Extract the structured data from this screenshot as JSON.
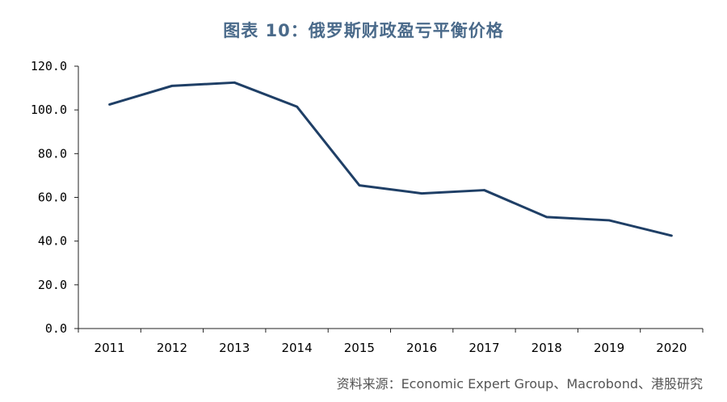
{
  "chart_data": {
    "type": "line",
    "title": "图表 10：俄罗斯财政盈亏平衡价格",
    "xlabel": "",
    "ylabel": "",
    "categories": [
      "2011",
      "2012",
      "2013",
      "2014",
      "2015",
      "2016",
      "2017",
      "2018",
      "2019",
      "2020"
    ],
    "series": [
      {
        "values": [
          102.5,
          111.0,
          112.5,
          101.5,
          65.5,
          61.8,
          63.3,
          51.0,
          49.5,
          42.5
        ]
      }
    ],
    "ylim": [
      0,
      120
    ],
    "yticks": [
      "0.0",
      "20.0",
      "40.0",
      "60.0",
      "80.0",
      "100.0",
      "120.0"
    ],
    "grid": false,
    "legend": "none",
    "line_color": "#1f3f66"
  },
  "source": "资料来源：Economic Expert Group、Macrobond、港股研究"
}
